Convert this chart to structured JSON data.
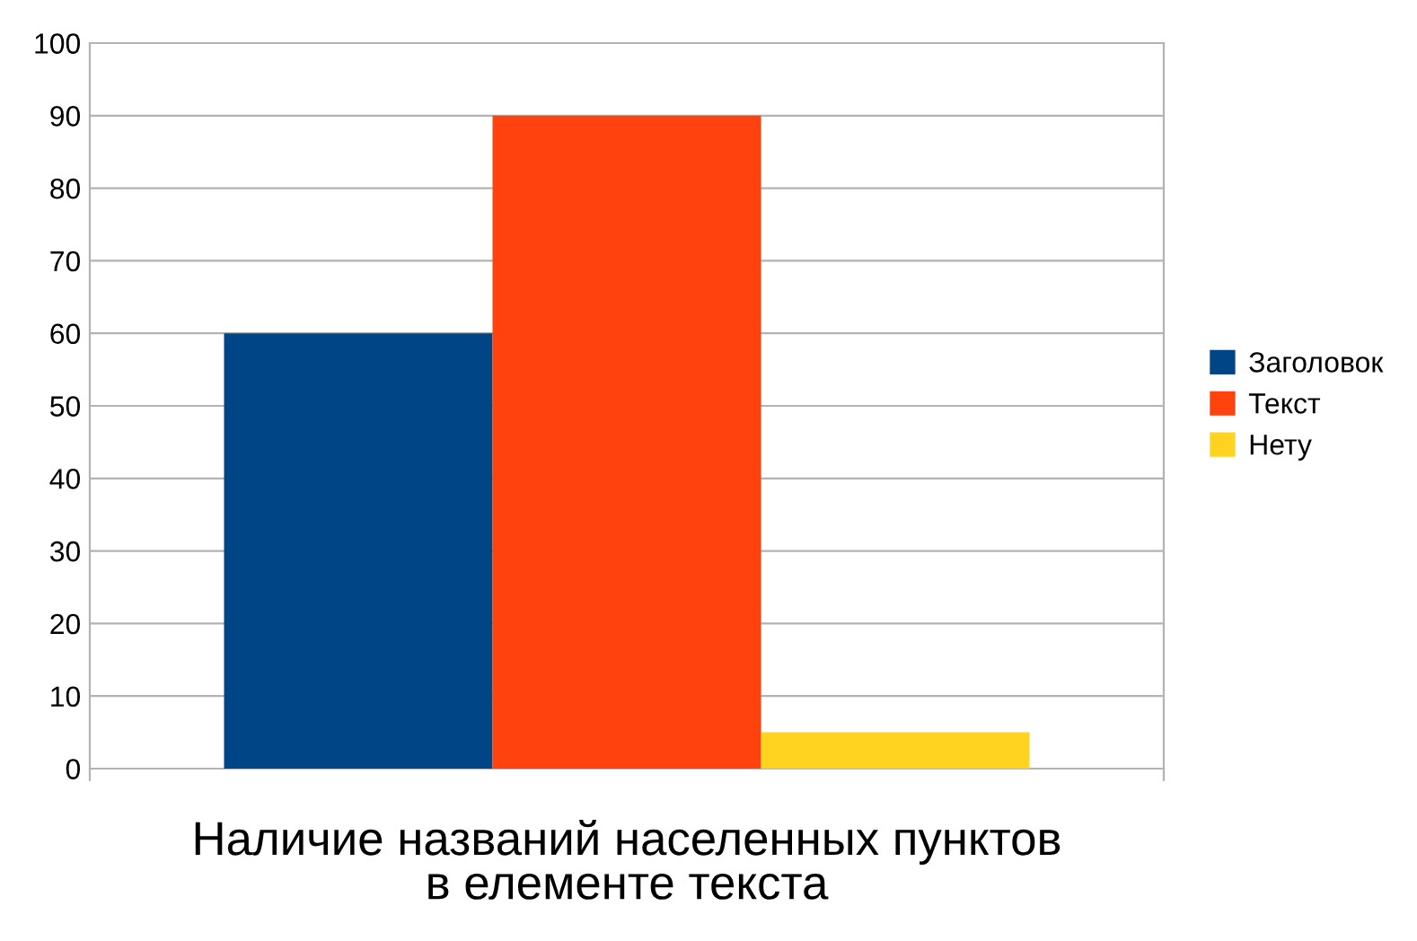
{
  "chart_data": {
    "type": "bar",
    "xlabel": "Наличие названий населенных пунктов\nв елементе текста",
    "categories": [
      null
    ],
    "series": [
      {
        "name": "Заголовок",
        "color": "#004586",
        "values": [
          60
        ]
      },
      {
        "name": "Текст",
        "color": "#ff420e",
        "values": [
          90
        ]
      },
      {
        "name": "Нету",
        "color": "#ffd320",
        "values": [
          5
        ]
      }
    ],
    "ylim": [
      0,
      100
    ],
    "yticks": [
      0,
      10,
      20,
      30,
      40,
      50,
      60,
      70,
      80,
      90,
      100
    ],
    "grid": "y",
    "legend": "right"
  }
}
